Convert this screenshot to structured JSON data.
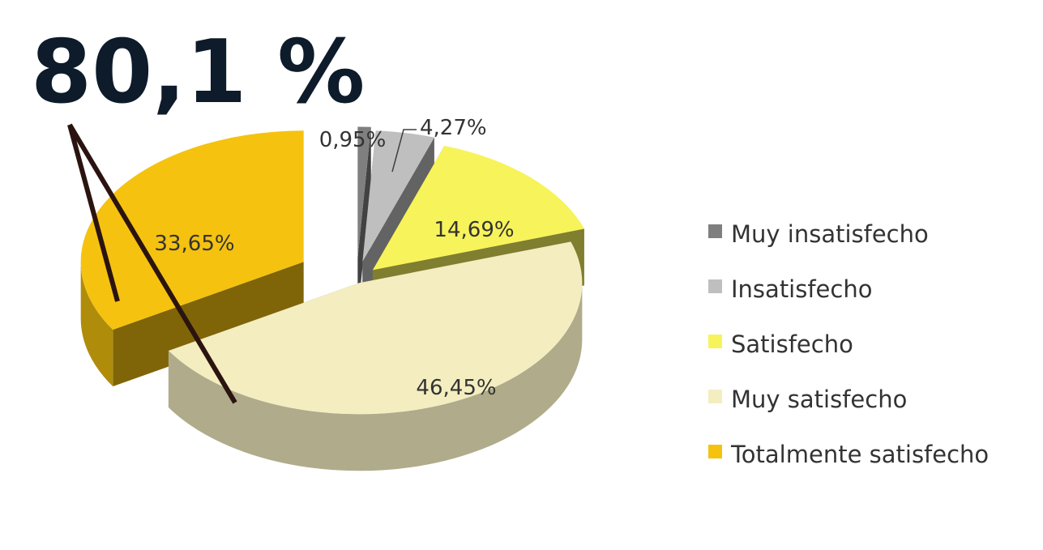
{
  "headline": "80,1 %",
  "chart_data": {
    "type": "pie",
    "variant": "3d-exploded",
    "title": "",
    "categories": [
      "Muy insatisfecho",
      "Insatisfecho",
      "Satisfecho",
      "Muy satisfecho",
      "Totalmente satisfecho"
    ],
    "values": [
      0.95,
      4.27,
      14.69,
      46.45,
      33.65
    ],
    "value_labels": [
      "0,95%",
      "4,27%",
      "14,69%",
      "46,45%",
      "33,65%"
    ],
    "colors": [
      "#7f7f7f",
      "#bfbfbf",
      "#f7f35a",
      "#f4edc0",
      "#f5c20f"
    ],
    "legend_position": "right",
    "highlight": {
      "value_label": "80,1 %",
      "categories": [
        "Muy satisfecho",
        "Totalmente satisfecho"
      ],
      "line_color": "#2b1410"
    }
  }
}
